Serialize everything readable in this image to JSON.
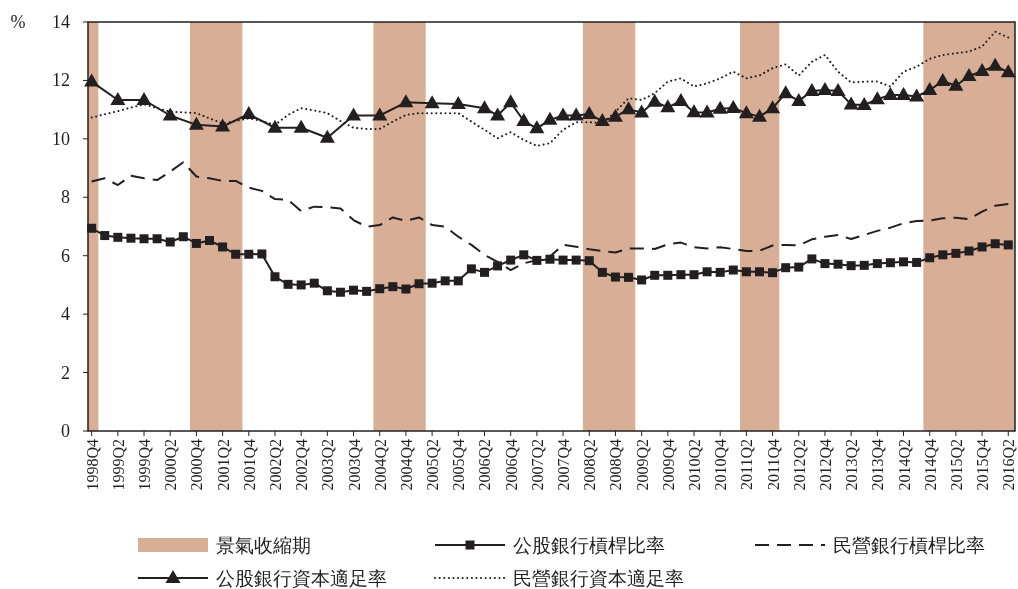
{
  "chart_data": {
    "type": "line",
    "ylabel": "%",
    "legend": "bottom",
    "x": [
      "1998-11-15",
      "1999-02-15",
      "1999-05-15",
      "1999-08-15",
      "1999-11-15",
      "2000-02-15",
      "2000-05-15",
      "2000-08-15",
      "2000-11-15",
      "2001-02-15",
      "2001-05-15",
      "2001-08-15",
      "2001-11-15",
      "2002-02-15",
      "2002-05-15",
      "2002-08-15",
      "2002-11-15",
      "2003-02-15",
      "2003-05-15",
      "2003-08-15",
      "2003-11-15",
      "2004-02-15",
      "2004-05-15",
      "2004-08-15",
      "2004-11-15",
      "2005-02-15",
      "2005-05-15",
      "2005-08-15",
      "2005-11-15",
      "2006-02-15",
      "2006-05-15",
      "2006-08-15",
      "2006-11-15",
      "2007-02-15",
      "2007-05-15",
      "2007-08-15",
      "2007-11-15",
      "2008-02-15",
      "2008-05-15",
      "2008-08-15",
      "2008-11-15",
      "2009-02-15",
      "2009-05-15",
      "2009-08-15",
      "2009-11-15",
      "2010-02-15",
      "2010-05-15",
      "2010-08-15",
      "2010-11-15",
      "2011-02-15",
      "2011-05-15",
      "2011-08-15",
      "2011-11-15",
      "2012-02-15",
      "2012-05-15",
      "2012-08-15",
      "2012-11-15",
      "2013-02-15",
      "2013-05-15",
      "2013-08-15",
      "2013-11-15",
      "2014-02-15",
      "2014-05-15",
      "2014-08-15",
      "2014-11-15",
      "2015-02-15",
      "2015-05-15",
      "2015-08-15",
      "2015-11-15",
      "2016-02-15",
      "2016-05-15"
    ],
    "xlim": [
      "1998-10-20",
      "2016-07-01"
    ],
    "xticks": [
      {
        "value": "1998-11-15",
        "label": "1998Q4"
      },
      {
        "value": "1999-05-15",
        "label": "1999Q2"
      },
      {
        "value": "1999-11-15",
        "label": "1999Q4"
      },
      {
        "value": "2000-05-15",
        "label": "2000Q2"
      },
      {
        "value": "2000-11-15",
        "label": "2000Q4"
      },
      {
        "value": "2001-05-15",
        "label": "2001Q2"
      },
      {
        "value": "2001-11-15",
        "label": "2001Q4"
      },
      {
        "value": "2002-05-15",
        "label": "2002Q2"
      },
      {
        "value": "2002-11-15",
        "label": "2002Q4"
      },
      {
        "value": "2003-05-15",
        "label": "2003Q2"
      },
      {
        "value": "2003-11-15",
        "label": "2003Q4"
      },
      {
        "value": "2004-05-15",
        "label": "2004Q2"
      },
      {
        "value": "2004-11-15",
        "label": "2004Q4"
      },
      {
        "value": "2005-05-15",
        "label": "2005Q2"
      },
      {
        "value": "2005-11-15",
        "label": "2005Q4"
      },
      {
        "value": "2006-05-15",
        "label": "2006Q2"
      },
      {
        "value": "2006-11-15",
        "label": "2006Q4"
      },
      {
        "value": "2007-05-15",
        "label": "2007Q2"
      },
      {
        "value": "2007-11-15",
        "label": "2007Q4"
      },
      {
        "value": "2008-05-15",
        "label": "2008Q2"
      },
      {
        "value": "2008-11-15",
        "label": "2008Q4"
      },
      {
        "value": "2009-05-15",
        "label": "2009Q2"
      },
      {
        "value": "2009-11-15",
        "label": "2009Q4"
      },
      {
        "value": "2010-05-15",
        "label": "2010Q2"
      },
      {
        "value": "2010-11-15",
        "label": "2010Q4"
      },
      {
        "value": "2011-05-15",
        "label": "2011Q2"
      },
      {
        "value": "2011-11-15",
        "label": "2011Q4"
      },
      {
        "value": "2012-05-15",
        "label": "2012Q2"
      },
      {
        "value": "2012-11-15",
        "label": "2012Q4"
      },
      {
        "value": "2013-05-15",
        "label": "2013Q2"
      },
      {
        "value": "2013-11-15",
        "label": "2013Q4"
      },
      {
        "value": "2014-05-15",
        "label": "2014Q2"
      },
      {
        "value": "2014-11-15",
        "label": "2014Q4"
      },
      {
        "value": "2015-05-15",
        "label": "2015Q2"
      },
      {
        "value": "2015-11-15",
        "label": "2015Q4"
      },
      {
        "value": "2016-05-15",
        "label": "2016Q2"
      }
    ],
    "ylim": [
      0,
      14
    ],
    "yticks": [
      0,
      2,
      4,
      6,
      8,
      10,
      12,
      14
    ],
    "bands": [
      {
        "axis": "x",
        "from": "1998-10-20",
        "to": "1999-01-01",
        "label": "景氣收縮期",
        "color": "#d8ae96"
      },
      {
        "axis": "x",
        "from": "2000-10-01",
        "to": "2001-10-01",
        "color": "#d8ae96"
      },
      {
        "axis": "x",
        "from": "2004-04-01",
        "to": "2005-04-01",
        "color": "#d8ae96"
      },
      {
        "axis": "x",
        "from": "2008-04-01",
        "to": "2009-04-01",
        "color": "#d8ae96"
      },
      {
        "axis": "x",
        "from": "2011-04-01",
        "to": "2012-01-01",
        "color": "#d8ae96"
      },
      {
        "axis": "x",
        "from": "2014-10-01",
        "to": "2016-07-01",
        "color": "#d8ae96"
      }
    ],
    "series": [
      {
        "name": "公股銀行槓桿比率",
        "color": "#231f20",
        "marker": "square",
        "line_style": "solid",
        "values": [
          6.94,
          6.69,
          6.63,
          6.6,
          6.58,
          6.58,
          6.47,
          6.65,
          6.42,
          6.52,
          6.3,
          6.05,
          6.05,
          6.06,
          5.28,
          5.02,
          5.0,
          5.06,
          4.8,
          4.75,
          4.82,
          4.78,
          4.87,
          4.94,
          4.86,
          5.04,
          5.06,
          5.14,
          5.14,
          5.55,
          5.43,
          5.65,
          5.85,
          6.03,
          5.84,
          5.88,
          5.85,
          5.85,
          5.83,
          5.43,
          5.27,
          5.26,
          5.17,
          5.33,
          5.33,
          5.35,
          5.35,
          5.45,
          5.43,
          5.51,
          5.45,
          5.45,
          5.42,
          5.59,
          5.61,
          5.89,
          5.73,
          5.71,
          5.66,
          5.67,
          5.73,
          5.76,
          5.79,
          5.77,
          5.93,
          6.03,
          6.08,
          6.16,
          6.3,
          6.41,
          6.37
        ]
      },
      {
        "name": "民營銀行槓桿比率",
        "color": "#231f20",
        "marker": "none",
        "line_style": "dashed",
        "values": [
          8.54,
          8.65,
          8.42,
          8.74,
          8.65,
          8.59,
          8.88,
          9.2,
          8.71,
          8.65,
          8.56,
          8.56,
          8.33,
          8.22,
          7.94,
          7.91,
          7.53,
          7.68,
          7.66,
          7.62,
          7.22,
          6.99,
          7.05,
          7.31,
          7.19,
          7.31,
          7.05,
          6.99,
          6.65,
          6.37,
          6.03,
          5.79,
          5.51,
          5.74,
          5.85,
          5.97,
          6.37,
          6.31,
          6.22,
          6.16,
          6.11,
          6.25,
          6.25,
          6.23,
          6.39,
          6.45,
          6.29,
          6.25,
          6.29,
          6.23,
          6.16,
          6.17,
          6.35,
          6.37,
          6.35,
          6.56,
          6.65,
          6.71,
          6.57,
          6.71,
          6.85,
          6.96,
          7.11,
          7.19,
          7.2,
          7.28,
          7.3,
          7.25,
          7.51,
          7.71,
          7.77
        ]
      },
      {
        "name": "公股銀行資本適足率",
        "color": "#231f20",
        "marker": "triangle",
        "line_style": "solid",
        "x": [
          "1998-11-15",
          "1999-05-15",
          "1999-11-15",
          "2000-05-15",
          "2000-11-15",
          "2001-05-15",
          "2001-11-15",
          "2002-05-15",
          "2002-11-15",
          "2003-05-15",
          "2003-11-15",
          "2004-05-15",
          "2004-11-15",
          "2005-05-15",
          "2005-11-15",
          "2006-05-15",
          "2006-08-15",
          "2006-11-15",
          "2007-02-15",
          "2007-05-15",
          "2007-08-15",
          "2007-11-15",
          "2008-02-15",
          "2008-05-15",
          "2008-08-15",
          "2008-11-15",
          "2009-02-15",
          "2009-05-15",
          "2009-08-15",
          "2009-11-15",
          "2010-02-15",
          "2010-05-15",
          "2010-08-15",
          "2010-11-15",
          "2011-02-15",
          "2011-05-15",
          "2011-08-15",
          "2011-11-15",
          "2012-02-15",
          "2012-05-15",
          "2012-08-15",
          "2012-11-15",
          "2013-02-15",
          "2013-05-15",
          "2013-08-15",
          "2013-11-15",
          "2014-02-15",
          "2014-05-15",
          "2014-08-15",
          "2014-11-15",
          "2015-02-15",
          "2015-05-15",
          "2015-08-15",
          "2015-11-15",
          "2016-02-15",
          "2016-05-15"
        ],
        "values": [
          11.96,
          11.33,
          11.33,
          10.8,
          10.48,
          10.42,
          10.85,
          10.38,
          10.38,
          10.04,
          10.8,
          10.8,
          11.25,
          11.22,
          11.19,
          11.05,
          10.8,
          11.25,
          10.61,
          10.36,
          10.65,
          10.8,
          10.8,
          10.85,
          10.61,
          10.76,
          11.01,
          10.9,
          11.27,
          11.08,
          11.3,
          10.91,
          10.9,
          11.03,
          11.06,
          10.88,
          10.76,
          11.05,
          11.56,
          11.3,
          11.64,
          11.67,
          11.64,
          11.18,
          11.16,
          11.36,
          11.5,
          11.5,
          11.45,
          11.67,
          11.98,
          11.82,
          12.15,
          12.32,
          12.5,
          12.28
        ]
      },
      {
        "name": "民營銀行資本適足率",
        "color": "#231f20",
        "marker": "none",
        "line_style": "dotted",
        "values": [
          10.73,
          10.84,
          10.95,
          11.07,
          11.18,
          11.05,
          10.93,
          10.91,
          10.88,
          10.7,
          10.53,
          10.61,
          10.7,
          10.61,
          10.48,
          10.82,
          11.05,
          10.97,
          10.88,
          10.61,
          10.38,
          10.34,
          10.34,
          10.59,
          10.82,
          10.88,
          10.88,
          10.88,
          10.88,
          10.59,
          10.31,
          10.02,
          10.23,
          9.96,
          9.76,
          9.85,
          10.31,
          10.57,
          10.57,
          10.53,
          10.93,
          11.39,
          11.33,
          11.56,
          11.96,
          12.07,
          11.79,
          11.9,
          12.07,
          12.3,
          12.07,
          12.17,
          12.42,
          12.55,
          12.17,
          12.64,
          12.87,
          12.3,
          11.93,
          11.96,
          11.96,
          11.79,
          12.3,
          12.47,
          12.74,
          12.87,
          12.93,
          12.99,
          13.16,
          13.67,
          13.47
        ]
      }
    ]
  }
}
